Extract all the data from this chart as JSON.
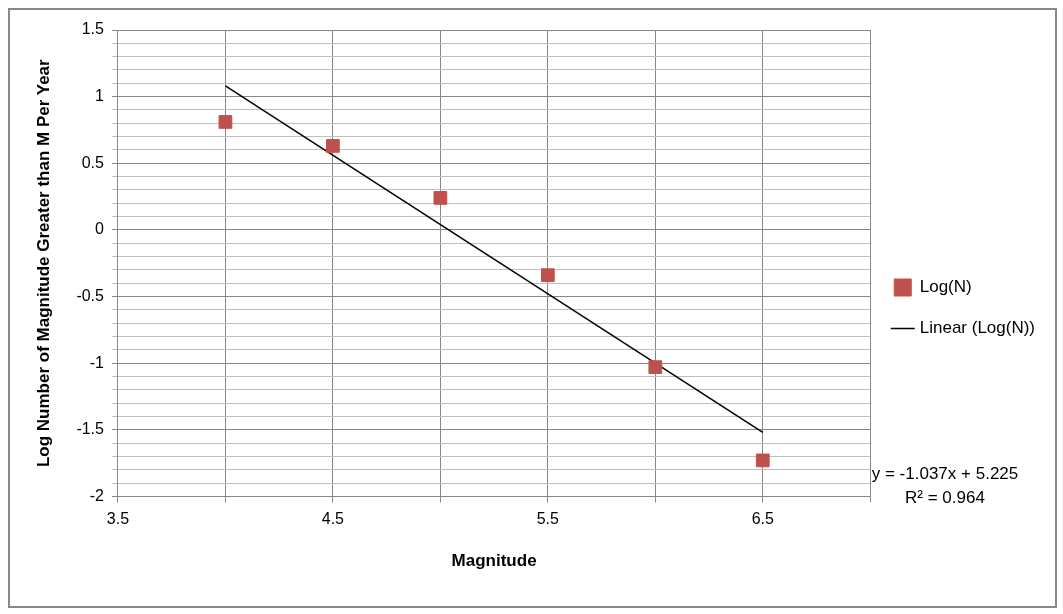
{
  "chart_data": {
    "type": "scatter",
    "xlabel": "Magnitude",
    "ylabel": "Log Number of Magnitude Greater than M Per Year",
    "series": [
      {
        "name": "Log(N)",
        "marker": "square",
        "color": "#c0504d",
        "x": [
          4,
          4.5,
          5,
          5.5,
          6,
          6.5
        ],
        "values": [
          0.81,
          0.63,
          0.24,
          -0.34,
          -1.03,
          -1.73
        ]
      },
      {
        "name": "Linear (Log(N))",
        "type": "line",
        "marker": "none",
        "color": "#000000",
        "x": [
          4,
          6.5
        ],
        "values": [
          1.08,
          -1.52
        ]
      }
    ],
    "xlim": [
      3.5,
      7
    ],
    "xticks": [
      3.5,
      {
        "value": 4,
        "label": null
      },
      4.5,
      {
        "value": 5,
        "label": null
      },
      5.5,
      {
        "value": 6,
        "label": null
      },
      6.5,
      {
        "value": 7,
        "label": null
      }
    ],
    "ylim": [
      -2,
      1.5
    ],
    "yticks": [
      -2,
      {
        "value": -1.9,
        "label": null
      },
      {
        "value": -1.8,
        "label": null
      },
      {
        "value": -1.7,
        "label": null
      },
      {
        "value": -1.6,
        "label": null
      },
      -1.5,
      {
        "value": -1.4,
        "label": null
      },
      {
        "value": -1.3,
        "label": null
      },
      {
        "value": -1.2,
        "label": null
      },
      {
        "value": -1.1,
        "label": null
      },
      -1,
      {
        "value": -0.9,
        "label": null
      },
      {
        "value": -0.8,
        "label": null
      },
      {
        "value": -0.7,
        "label": null
      },
      {
        "value": -0.6,
        "label": null
      },
      -0.5,
      {
        "value": -0.4,
        "label": null
      },
      {
        "value": -0.3,
        "label": null
      },
      {
        "value": -0.2,
        "label": null
      },
      {
        "value": -0.1,
        "label": null
      },
      0,
      {
        "value": 0.1,
        "label": null
      },
      {
        "value": 0.2,
        "label": null
      },
      {
        "value": 0.3,
        "label": null
      },
      {
        "value": 0.4,
        "label": null
      },
      0.5,
      {
        "value": 0.6,
        "label": null
      },
      {
        "value": 0.7,
        "label": null
      },
      {
        "value": 0.8,
        "label": null
      },
      {
        "value": 0.9,
        "label": null
      },
      1,
      {
        "value": 1.1,
        "label": null
      },
      {
        "value": 1.2,
        "label": null
      },
      {
        "value": 1.3,
        "label": null
      },
      {
        "value": 1.4,
        "label": null
      },
      1.5
    ],
    "grid": true,
    "legend": "right",
    "annotations": [
      "y = -1.037x + 5.225",
      "R² = 0.964"
    ]
  }
}
